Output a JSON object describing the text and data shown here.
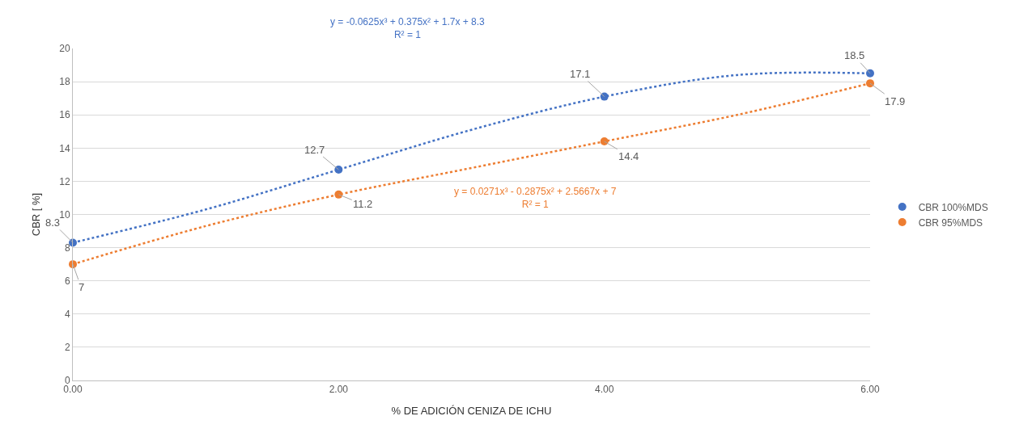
{
  "chart_data": {
    "type": "scatter",
    "xlabel": "% DE ADICIÓN CENIZA DE ICHU",
    "ylabel": "CBR [ %]",
    "xlim": [
      0,
      6
    ],
    "xticks": [
      {
        "value": 0,
        "label": "0.00"
      },
      {
        "value": 2,
        "label": "2.00"
      },
      {
        "value": 4,
        "label": "4.00"
      },
      {
        "value": 6,
        "label": "6.00"
      }
    ],
    "ylim": [
      0,
      20
    ],
    "yticks": [
      0,
      2,
      4,
      6,
      8,
      10,
      12,
      14,
      16,
      18,
      20
    ],
    "grid": "y",
    "legend": "right",
    "marker": "circle",
    "series": [
      {
        "name": "CBR 100%MDS",
        "color": "#4472c4",
        "x": [
          0,
          2,
          4,
          6
        ],
        "values": [
          8.3,
          12.7,
          17.1,
          18.5
        ],
        "value_labels": [
          "8.3",
          "12.7",
          "17.1",
          "18.5"
        ]
      },
      {
        "name": "CBR 95%MDS",
        "color": "#ed7d31",
        "x": [
          0,
          2,
          4,
          6
        ],
        "values": [
          7,
          11.2,
          14.4,
          17.9
        ],
        "value_labels": [
          "7",
          "11.2",
          "14.4",
          "17.9"
        ]
      },
      {
        "color": "#4472c4",
        "type": "line",
        "line_style": "dotted",
        "marker": "none",
        "x": [
          0,
          1,
          2,
          3,
          4,
          5,
          6
        ],
        "values": [
          8.3,
          10.3,
          12.7,
          15.1,
          17.1,
          18.4,
          18.5
        ]
      },
      {
        "color": "#ed7d31",
        "type": "line",
        "line_style": "dotted",
        "marker": "none",
        "x": [
          0,
          1,
          2,
          3,
          4,
          5,
          6
        ],
        "values": [
          7,
          9.3,
          11.2,
          12.8,
          14.4,
          16.0,
          17.9
        ]
      }
    ],
    "annotations": [
      "y = -0.0625x³ + 0.375x² + 1.7x + 8.3\nR² = 1",
      "y = 0.0271x³ - 0.2875x² + 2.5667x + 7\nR² = 1"
    ]
  }
}
